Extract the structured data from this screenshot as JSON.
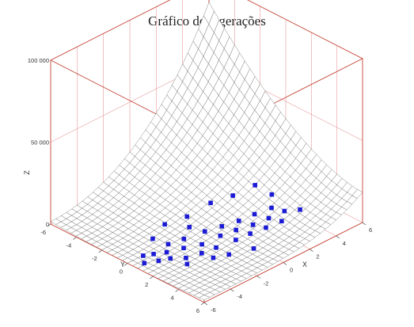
{
  "title": "Gráfico de 3 gerações",
  "chart_data": {
    "type": "surface3d",
    "title": "Gráfico de 3 gerações",
    "xlabel": "X",
    "ylabel": "Y",
    "zlabel": "Z",
    "x_ticks": [
      "-6",
      "-4",
      "-2",
      "0",
      "2",
      "4",
      "6"
    ],
    "y_ticks": [
      "-6",
      "-4",
      "-2",
      "0",
      "2",
      "4",
      "6"
    ],
    "z_ticks": [
      "0",
      "50 000",
      "100 000"
    ],
    "xlim": [
      -6,
      6
    ],
    "ylim": [
      -6,
      6
    ],
    "zlim": [
      0,
      100000
    ],
    "surface_colors": {
      "top": "#f4f000",
      "under": "#ffffff",
      "mesh": "#555555",
      "points": "#1b1bd6"
    },
    "points": [
      [
        -5.5,
        0.8
      ],
      [
        -5.0,
        0.2
      ],
      [
        -4.8,
        1.2
      ],
      [
        -4.5,
        0.5
      ],
      [
        -4.2,
        1.5
      ],
      [
        -3.9,
        0.9
      ],
      [
        -3.6,
        2.1
      ],
      [
        -3.3,
        0.4
      ],
      [
        -3.0,
        1.3
      ],
      [
        -2.7,
        2.4
      ],
      [
        -2.4,
        0.7
      ],
      [
        -2.1,
        1.8
      ],
      [
        -1.8,
        2.6
      ],
      [
        -1.5,
        0.2
      ],
      [
        -1.2,
        1.1
      ],
      [
        -0.9,
        2.0
      ],
      [
        -0.6,
        2.9
      ],
      [
        -0.3,
        1.5
      ],
      [
        0.0,
        2.3
      ],
      [
        0.3,
        3.1
      ],
      [
        0.6,
        1.9
      ],
      [
        0.9,
        2.7
      ],
      [
        1.2,
        3.4
      ],
      [
        1.5,
        2.2
      ],
      [
        1.8,
        3.0
      ],
      [
        2.1,
        3.7
      ],
      [
        2.4,
        2.6
      ],
      [
        2.7,
        3.3
      ],
      [
        3.0,
        2.0
      ],
      [
        3.3,
        3.9
      ],
      [
        -2.2,
        -1.0
      ],
      [
        -1.0,
        -0.5
      ],
      [
        0.5,
        -0.2
      ],
      [
        1.6,
        0.4
      ],
      [
        2.8,
        0.9
      ],
      [
        -3.5,
        -0.6
      ],
      [
        -0.5,
        4.2
      ],
      [
        -1.8,
        3.6
      ],
      [
        -2.6,
        3.2
      ],
      [
        -4.0,
        2.6
      ]
    ]
  }
}
